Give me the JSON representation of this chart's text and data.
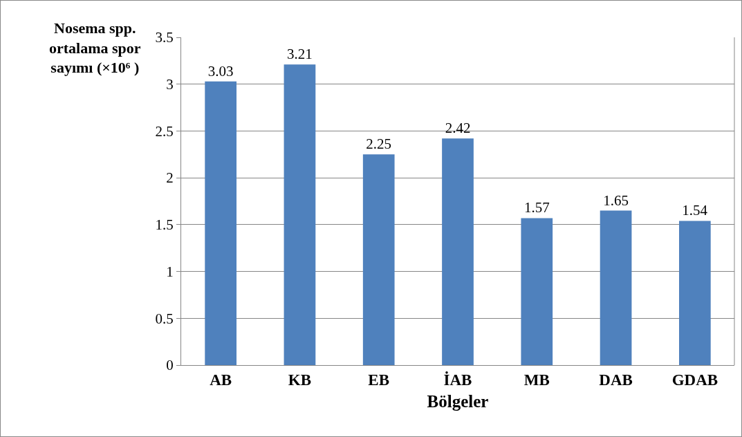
{
  "chart_data": {
    "type": "bar",
    "xlabel": "Bölgeler",
    "ylabel": "Nosema spp. ortalama spor sayımı (×10⁶ )",
    "categories": [
      "AB",
      "KB",
      "EB",
      "İAB",
      "MB",
      "DAB",
      "GDAB"
    ],
    "values": [
      3.03,
      3.21,
      2.25,
      2.42,
      1.57,
      1.65,
      1.54
    ],
    "color": "#4f81bd",
    "ylim": [
      0,
      3.5
    ],
    "yticks": [
      0,
      0.5,
      1,
      1.5,
      2,
      2.5,
      3,
      3.5
    ],
    "grid": "y",
    "data_labels": true
  }
}
